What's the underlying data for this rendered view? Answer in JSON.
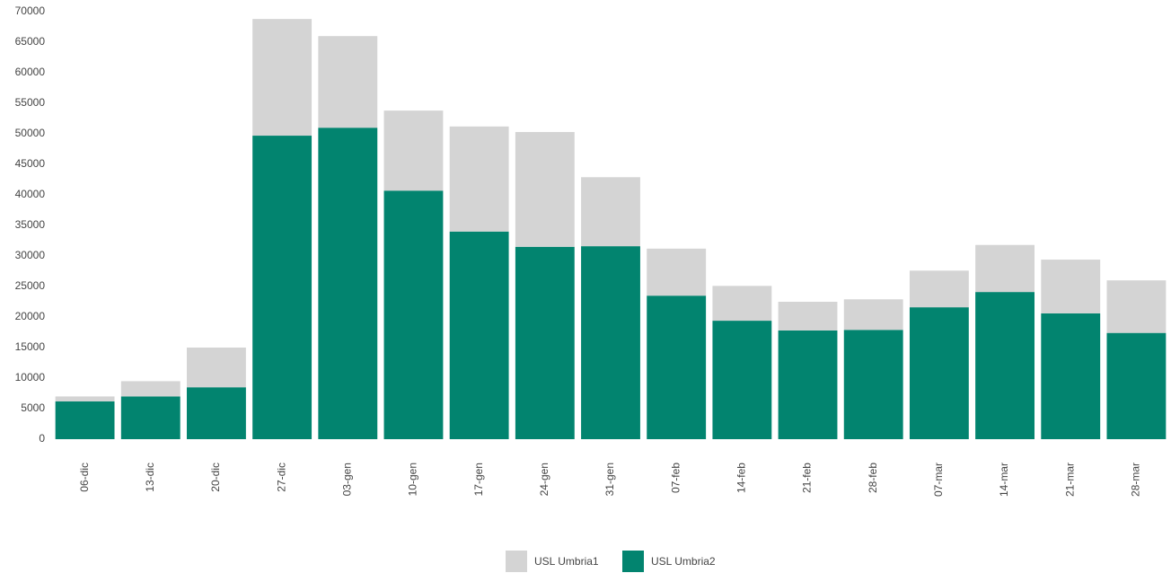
{
  "chart_data": {
    "type": "bar",
    "stacked": true,
    "categories": [
      "06-dic",
      "13-dic",
      "20-dic",
      "27-dic",
      "03-gen",
      "10-gen",
      "17-gen",
      "24-gen",
      "31-gen",
      "07-feb",
      "14-feb",
      "21-feb",
      "28-feb",
      "07-mar",
      "14-mar",
      "21-mar",
      "28-mar"
    ],
    "series": [
      {
        "name": "USL Umbria1",
        "color": "#d4d4d4",
        "values": [
          800,
          2500,
          6500,
          19100,
          15000,
          13100,
          17200,
          18800,
          11300,
          7700,
          5700,
          4700,
          5000,
          6000,
          7700,
          8800,
          8600
        ]
      },
      {
        "name": "USL Umbria2",
        "color": "#02846f",
        "values": [
          6200,
          7000,
          8500,
          49700,
          51000,
          40700,
          34000,
          31500,
          31600,
          23500,
          19400,
          17800,
          17900,
          21600,
          24100,
          20600,
          17400
        ]
      }
    ],
    "ylim": [
      0,
      70000
    ],
    "yticks": [
      0,
      5000,
      10000,
      15000,
      20000,
      25000,
      30000,
      35000,
      40000,
      45000,
      50000,
      55000,
      60000,
      65000,
      70000
    ],
    "grid": false,
    "legend": "bottom"
  }
}
